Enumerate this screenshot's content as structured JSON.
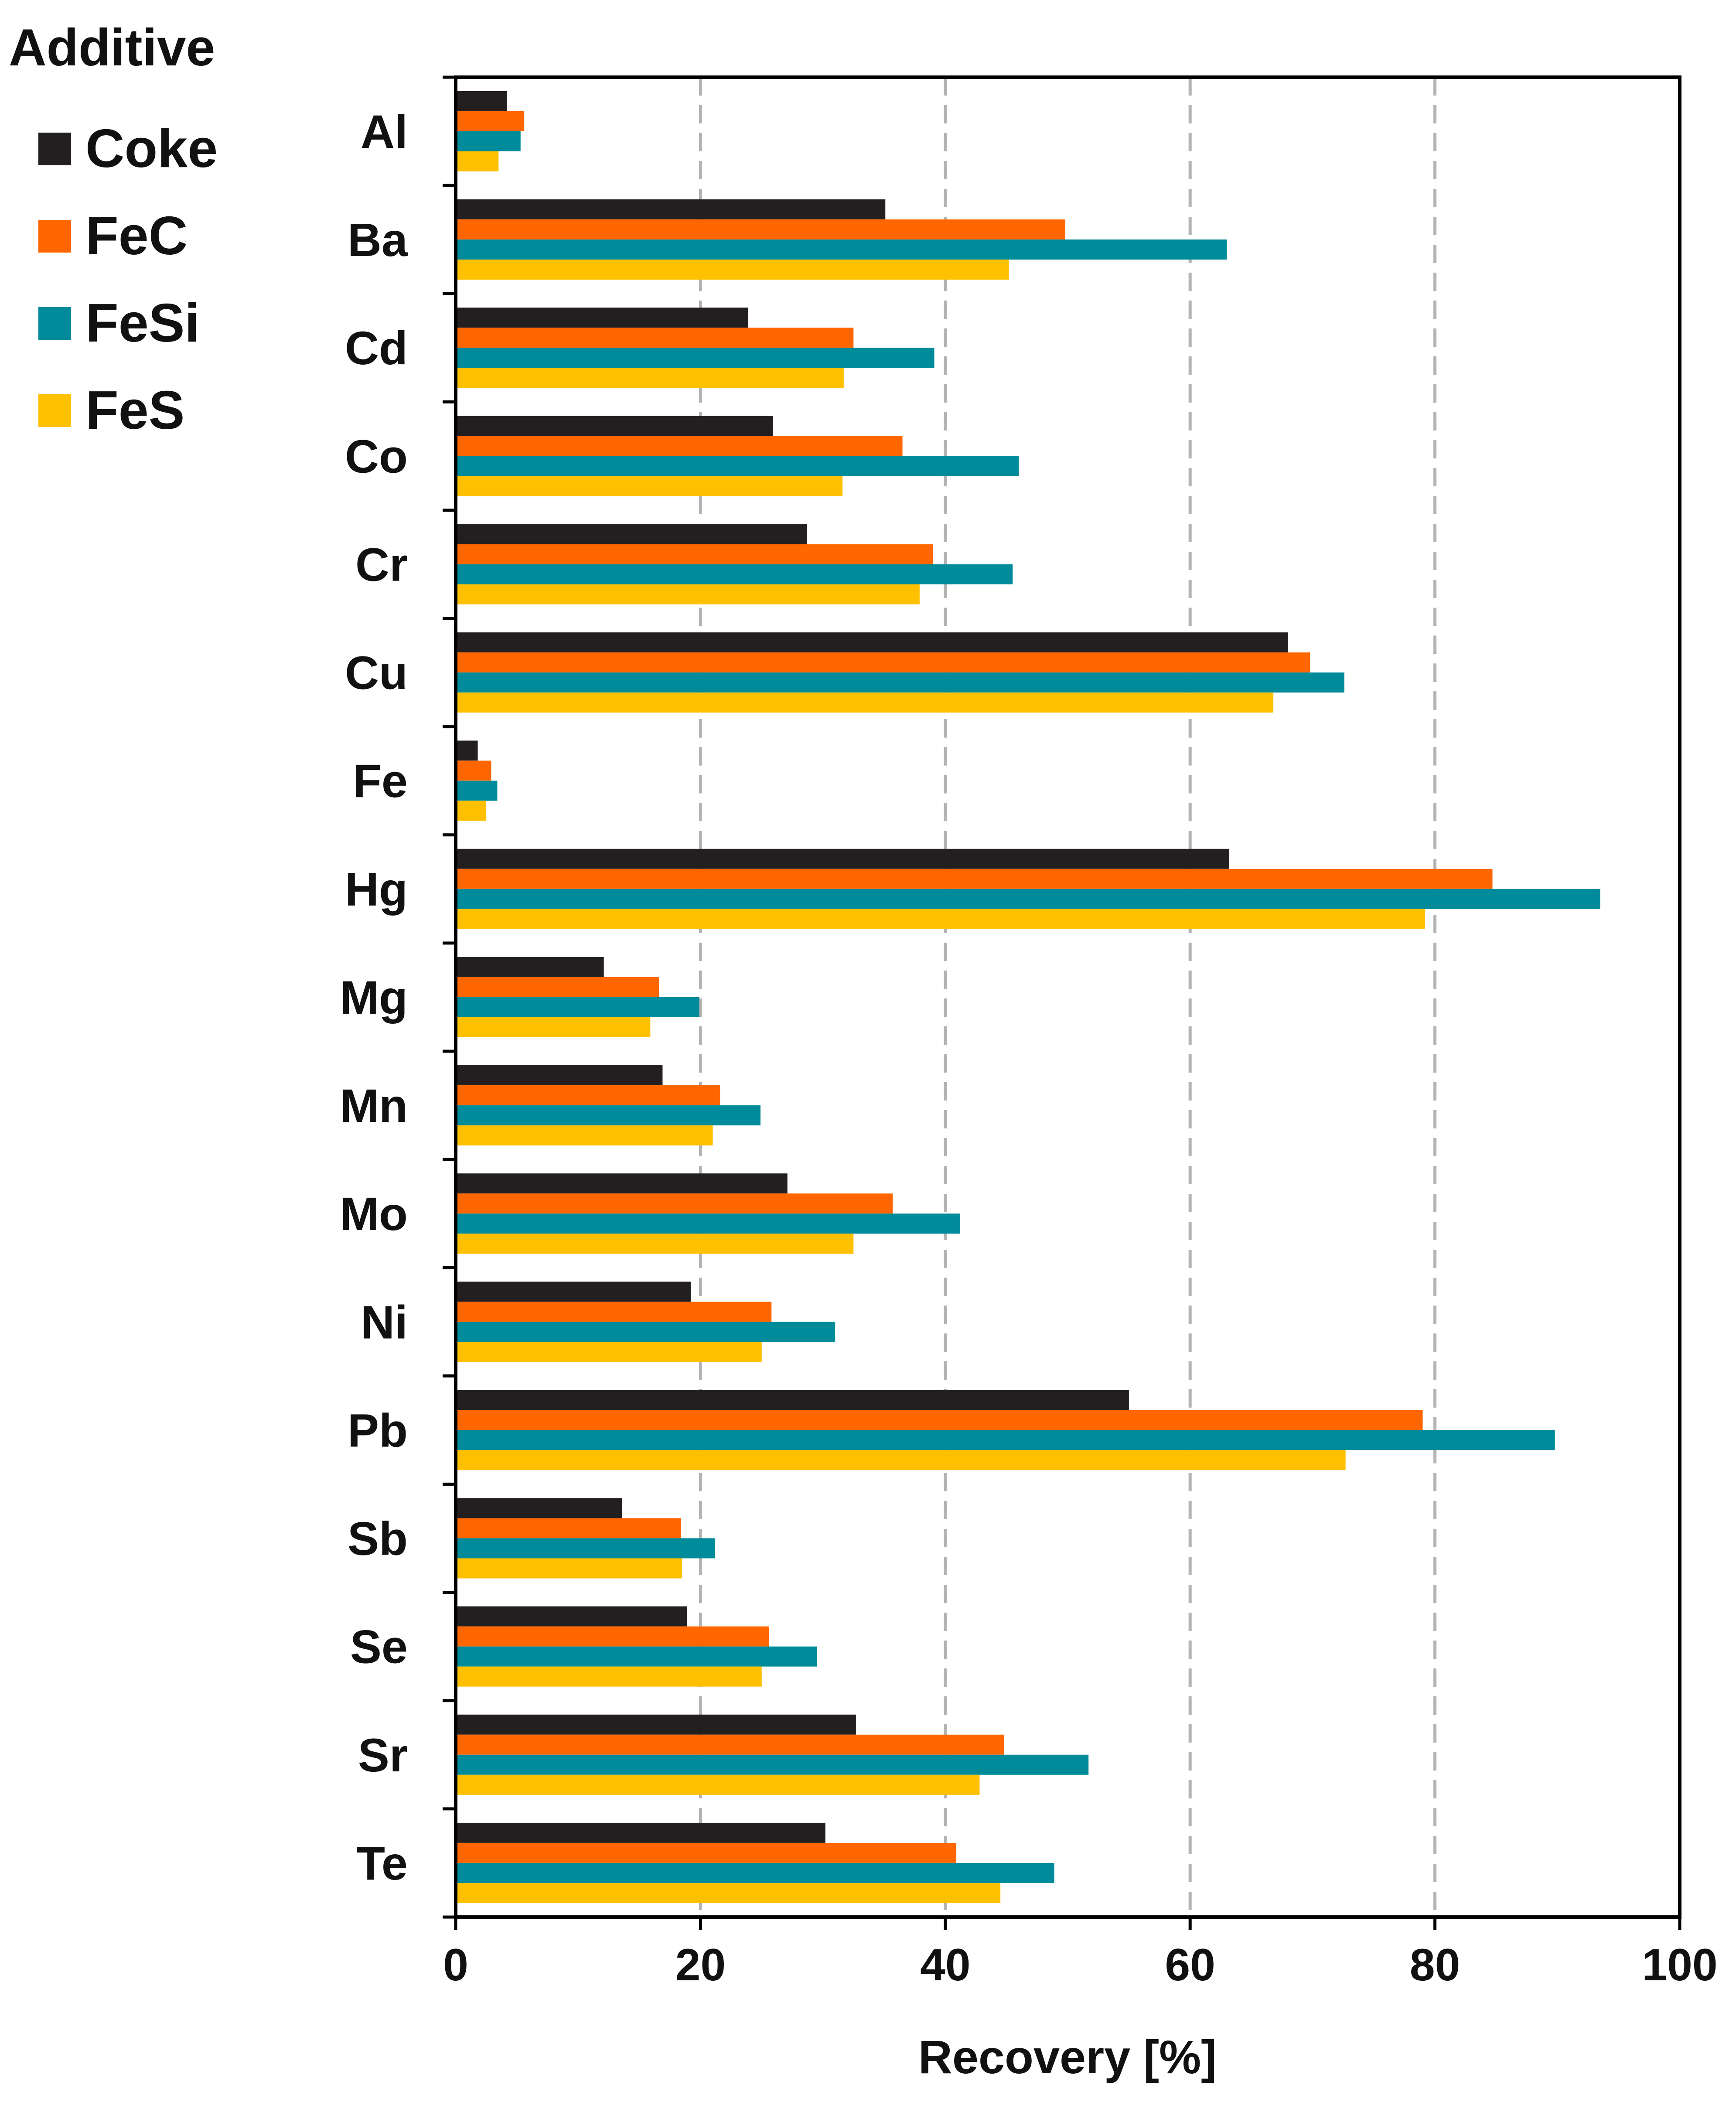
{
  "chart_data": {
    "type": "bar",
    "orientation": "horizontal",
    "title": "",
    "xlabel": "Recovery [%]",
    "ylabel": "",
    "xlim": [
      0,
      100
    ],
    "xticks": [
      0,
      20,
      40,
      60,
      80,
      100
    ],
    "grid": "vertical dashed",
    "legend": {
      "title": "Additive",
      "position": "top-left outside"
    },
    "categories": [
      "Al",
      "Ba",
      "Cd",
      "Co",
      "Cr",
      "Cu",
      "Fe",
      "Hg",
      "Mg",
      "Mn",
      "Mo",
      "Ni",
      "Pb",
      "Sb",
      "Se",
      "Sr",
      "Te"
    ],
    "series": [
      {
        "name": "Coke",
        "color": "#231f20",
        "values": [
          4.2,
          35.1,
          23.9,
          25.9,
          28.7,
          68.0,
          1.8,
          63.2,
          12.1,
          16.9,
          27.1,
          19.2,
          55.0,
          13.6,
          18.9,
          32.7,
          30.2
        ]
      },
      {
        "name": "FeC",
        "color": "#ff6600",
        "values": [
          5.6,
          49.8,
          32.5,
          36.5,
          39.0,
          69.8,
          2.9,
          84.7,
          16.6,
          21.6,
          35.7,
          25.8,
          79.0,
          18.4,
          25.6,
          44.8,
          40.9
        ]
      },
      {
        "name": "FeSi",
        "color": "#008b9a",
        "values": [
          5.3,
          63.0,
          39.1,
          46.0,
          45.5,
          72.6,
          3.4,
          93.5,
          19.9,
          24.9,
          41.2,
          31.0,
          89.8,
          21.2,
          29.5,
          51.7,
          48.9
        ]
      },
      {
        "name": "FeS",
        "color": "#ffc000",
        "values": [
          3.5,
          45.2,
          31.7,
          31.6,
          37.9,
          66.8,
          2.5,
          79.2,
          15.9,
          21.0,
          32.5,
          25.0,
          72.7,
          18.5,
          25.0,
          42.8,
          44.5
        ]
      }
    ]
  }
}
